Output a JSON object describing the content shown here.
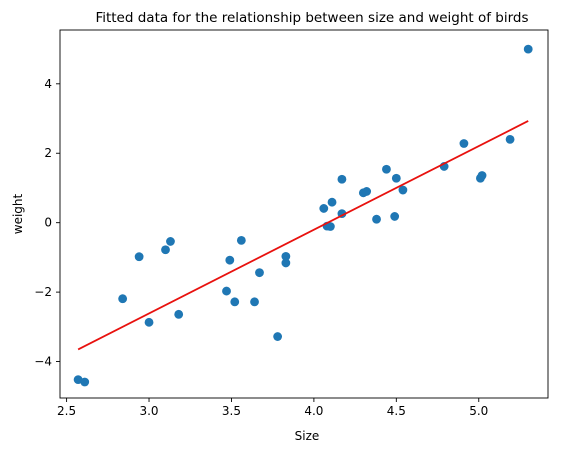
{
  "chart_data": {
    "type": "scatter",
    "title": "Fitted data for the relationship between size and weight of birds",
    "xlabel": "Size",
    "ylabel": "weight",
    "xlim": [
      2.46,
      5.42
    ],
    "ylim": [
      -5.05,
      5.55
    ],
    "xticks": [
      2.5,
      3.0,
      3.5,
      4.0,
      4.5,
      5.0
    ],
    "xtick_labels": [
      "2.5",
      "3.0",
      "3.5",
      "4.0",
      "4.5",
      "5.0"
    ],
    "yticks": [
      -4,
      -2,
      0,
      2,
      4
    ],
    "ytick_labels": [
      "−4",
      "−2",
      "0",
      "2",
      "4"
    ],
    "grid": false,
    "legend": null,
    "series": [
      {
        "kind": "scatter",
        "color": "#1f77b4",
        "points": [
          {
            "x": 2.57,
            "y": -4.52
          },
          {
            "x": 2.61,
            "y": -4.59
          },
          {
            "x": 2.84,
            "y": -2.19
          },
          {
            "x": 2.94,
            "y": -0.98
          },
          {
            "x": 3.0,
            "y": -2.87
          },
          {
            "x": 3.1,
            "y": -0.78
          },
          {
            "x": 3.13,
            "y": -0.54
          },
          {
            "x": 3.18,
            "y": -2.64
          },
          {
            "x": 3.47,
            "y": -1.97
          },
          {
            "x": 3.49,
            "y": -1.08
          },
          {
            "x": 3.52,
            "y": -2.28
          },
          {
            "x": 3.56,
            "y": -0.51
          },
          {
            "x": 3.64,
            "y": -2.28
          },
          {
            "x": 3.67,
            "y": -1.44
          },
          {
            "x": 3.78,
            "y": -3.28
          },
          {
            "x": 3.83,
            "y": -0.97
          },
          {
            "x": 3.83,
            "y": -1.16
          },
          {
            "x": 4.06,
            "y": 0.41
          },
          {
            "x": 4.08,
            "y": -0.1
          },
          {
            "x": 4.1,
            "y": -0.11
          },
          {
            "x": 4.11,
            "y": 0.59
          },
          {
            "x": 4.17,
            "y": 1.25
          },
          {
            "x": 4.17,
            "y": 0.26
          },
          {
            "x": 4.3,
            "y": 0.86
          },
          {
            "x": 4.32,
            "y": 0.9
          },
          {
            "x": 4.38,
            "y": 0.1
          },
          {
            "x": 4.44,
            "y": 1.54
          },
          {
            "x": 4.49,
            "y": 0.18
          },
          {
            "x": 4.5,
            "y": 1.28
          },
          {
            "x": 4.54,
            "y": 0.94
          },
          {
            "x": 4.79,
            "y": 1.62
          },
          {
            "x": 4.91,
            "y": 2.28
          },
          {
            "x": 5.01,
            "y": 1.28
          },
          {
            "x": 5.02,
            "y": 1.36
          },
          {
            "x": 5.19,
            "y": 2.4
          },
          {
            "x": 5.3,
            "y": 5.0
          }
        ]
      },
      {
        "kind": "line",
        "color": "#e8110e",
        "points": [
          {
            "x": 2.57,
            "y": -3.65
          },
          {
            "x": 5.3,
            "y": 2.93
          }
        ]
      }
    ]
  }
}
